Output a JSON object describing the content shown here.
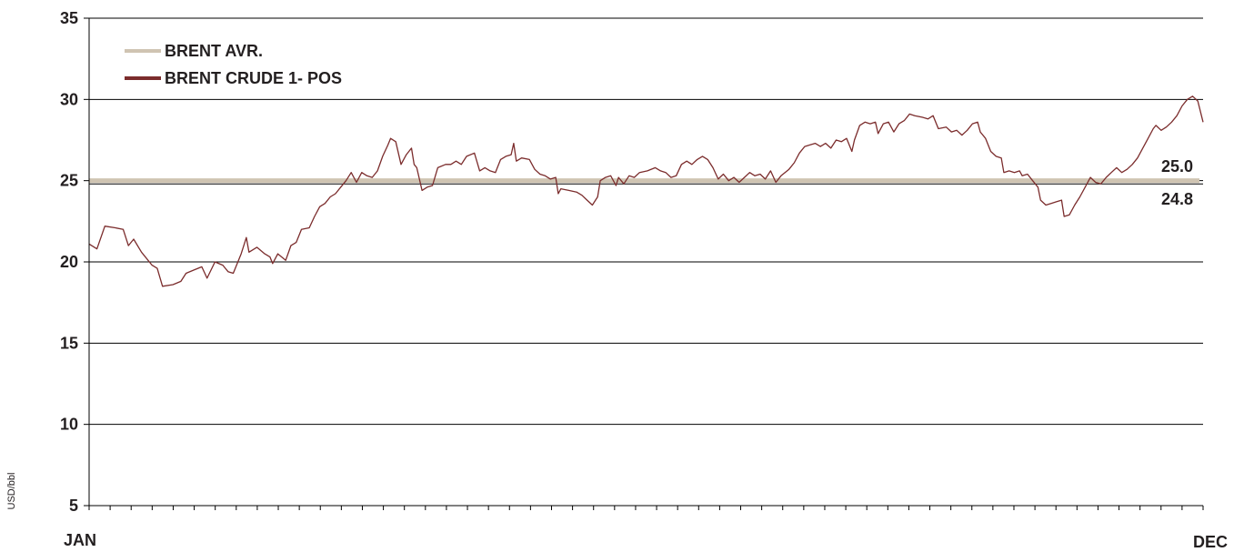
{
  "chart_data": {
    "type": "line",
    "ylabel": "USD/bbl",
    "ylim": [
      5,
      35
    ],
    "yticks": [
      "5",
      "10",
      "15",
      "20",
      "25",
      "30",
      "35"
    ],
    "xlabels": {
      "start": "JAN",
      "end": "DEC"
    },
    "grid": true,
    "legend_position": "top-left",
    "colors": {
      "avg_line": "#cfc4b2",
      "price_line": "#7b2c2c",
      "grid": "#000000",
      "text": "#231f20"
    },
    "legend": [
      {
        "label": "BRENT AVR.",
        "series": "average"
      },
      {
        "label": "BRENT CRUDE 1- POS",
        "series": "price"
      }
    ],
    "reference_lines": [
      {
        "value": 25.0,
        "label": "25.0",
        "color": "#cfc4b2"
      },
      {
        "value": 24.8,
        "label": "24.8",
        "color": "#000000"
      }
    ],
    "series": [
      {
        "name": "BRENT CRUDE 1- POS",
        "color": "#7b2c2c",
        "points": [
          [
            0.0,
            21.1
          ],
          [
            0.3,
            20.8
          ],
          [
            0.6,
            22.2
          ],
          [
            1.0,
            22.1
          ],
          [
            1.3,
            22.0
          ],
          [
            1.5,
            21.0
          ],
          [
            1.7,
            21.4
          ],
          [
            2.0,
            20.6
          ],
          [
            2.4,
            19.8
          ],
          [
            2.6,
            19.6
          ],
          [
            2.8,
            18.5
          ],
          [
            3.2,
            18.6
          ],
          [
            3.5,
            18.8
          ],
          [
            3.7,
            19.3
          ],
          [
            4.0,
            19.5
          ],
          [
            4.3,
            19.7
          ],
          [
            4.5,
            19.0
          ],
          [
            4.8,
            20.0
          ],
          [
            5.1,
            19.8
          ],
          [
            5.3,
            19.4
          ],
          [
            5.5,
            19.3
          ],
          [
            5.8,
            20.5
          ],
          [
            6.0,
            21.5
          ],
          [
            6.1,
            20.6
          ],
          [
            6.4,
            20.9
          ],
          [
            6.7,
            20.5
          ],
          [
            6.9,
            20.3
          ],
          [
            7.0,
            19.9
          ],
          [
            7.2,
            20.5
          ],
          [
            7.5,
            20.1
          ],
          [
            7.7,
            21.0
          ],
          [
            7.9,
            21.2
          ],
          [
            8.1,
            22.0
          ],
          [
            8.4,
            22.1
          ],
          [
            8.6,
            22.8
          ],
          [
            8.8,
            23.4
          ],
          [
            9.0,
            23.6
          ],
          [
            9.2,
            24.0
          ],
          [
            9.4,
            24.2
          ],
          [
            9.6,
            24.6
          ],
          [
            9.8,
            25.0
          ],
          [
            10.0,
            25.5
          ],
          [
            10.2,
            24.9
          ],
          [
            10.4,
            25.5
          ],
          [
            10.6,
            25.3
          ],
          [
            10.8,
            25.2
          ],
          [
            11.0,
            25.6
          ],
          [
            11.2,
            26.5
          ],
          [
            11.4,
            27.2
          ],
          [
            11.5,
            27.6
          ],
          [
            11.7,
            27.4
          ],
          [
            11.9,
            26.0
          ],
          [
            12.1,
            26.6
          ],
          [
            12.3,
            27.0
          ],
          [
            12.4,
            26.0
          ],
          [
            12.5,
            25.8
          ],
          [
            12.7,
            24.4
          ],
          [
            12.9,
            24.6
          ],
          [
            13.1,
            24.7
          ],
          [
            13.3,
            25.8
          ],
          [
            13.6,
            26.0
          ],
          [
            13.8,
            26.0
          ],
          [
            14.0,
            26.2
          ],
          [
            14.2,
            26.0
          ],
          [
            14.4,
            26.5
          ],
          [
            14.7,
            26.7
          ],
          [
            14.9,
            25.6
          ],
          [
            15.1,
            25.8
          ],
          [
            15.3,
            25.6
          ],
          [
            15.5,
            25.5
          ],
          [
            15.7,
            26.3
          ],
          [
            15.9,
            26.5
          ],
          [
            16.1,
            26.6
          ],
          [
            16.2,
            27.3
          ],
          [
            16.3,
            26.2
          ],
          [
            16.5,
            26.4
          ],
          [
            16.8,
            26.3
          ],
          [
            17.0,
            25.7
          ],
          [
            17.2,
            25.4
          ],
          [
            17.4,
            25.3
          ],
          [
            17.6,
            25.1
          ],
          [
            17.8,
            25.2
          ],
          [
            17.9,
            24.2
          ],
          [
            18.0,
            24.5
          ],
          [
            18.3,
            24.4
          ],
          [
            18.6,
            24.3
          ],
          [
            18.8,
            24.1
          ],
          [
            19.0,
            23.8
          ],
          [
            19.2,
            23.5
          ],
          [
            19.4,
            24.0
          ],
          [
            19.5,
            25.0
          ],
          [
            19.7,
            25.2
          ],
          [
            19.9,
            25.3
          ],
          [
            20.1,
            24.7
          ],
          [
            20.2,
            25.2
          ],
          [
            20.4,
            24.8
          ],
          [
            20.6,
            25.3
          ],
          [
            20.8,
            25.2
          ],
          [
            21.0,
            25.5
          ],
          [
            21.3,
            25.6
          ],
          [
            21.6,
            25.8
          ],
          [
            21.8,
            25.6
          ],
          [
            22.0,
            25.5
          ],
          [
            22.2,
            25.2
          ],
          [
            22.4,
            25.3
          ],
          [
            22.6,
            26.0
          ],
          [
            22.8,
            26.2
          ],
          [
            23.0,
            26.0
          ],
          [
            23.2,
            26.3
          ],
          [
            23.4,
            26.5
          ],
          [
            23.6,
            26.3
          ],
          [
            23.8,
            25.8
          ],
          [
            24.0,
            25.1
          ],
          [
            24.2,
            25.4
          ],
          [
            24.4,
            25.0
          ],
          [
            24.6,
            25.2
          ],
          [
            24.8,
            24.9
          ],
          [
            25.0,
            25.2
          ],
          [
            25.2,
            25.5
          ],
          [
            25.4,
            25.3
          ],
          [
            25.6,
            25.4
          ],
          [
            25.8,
            25.1
          ],
          [
            26.0,
            25.6
          ],
          [
            26.2,
            24.9
          ],
          [
            26.4,
            25.3
          ],
          [
            26.7,
            25.7
          ],
          [
            26.9,
            26.1
          ],
          [
            27.1,
            26.7
          ],
          [
            27.3,
            27.1
          ],
          [
            27.5,
            27.2
          ],
          [
            27.7,
            27.3
          ],
          [
            27.9,
            27.1
          ],
          [
            28.1,
            27.3
          ],
          [
            28.3,
            27.0
          ],
          [
            28.5,
            27.5
          ],
          [
            28.7,
            27.4
          ],
          [
            28.9,
            27.6
          ],
          [
            29.1,
            26.8
          ],
          [
            29.2,
            27.5
          ],
          [
            29.4,
            28.4
          ],
          [
            29.6,
            28.6
          ],
          [
            29.8,
            28.5
          ],
          [
            30.0,
            28.6
          ],
          [
            30.1,
            27.9
          ],
          [
            30.3,
            28.5
          ],
          [
            30.5,
            28.6
          ],
          [
            30.7,
            28.0
          ],
          [
            30.9,
            28.5
          ],
          [
            31.1,
            28.7
          ],
          [
            31.3,
            29.1
          ],
          [
            31.5,
            29.0
          ],
          [
            31.8,
            28.9
          ],
          [
            32.0,
            28.8
          ],
          [
            32.2,
            29.0
          ],
          [
            32.4,
            28.2
          ],
          [
            32.7,
            28.3
          ],
          [
            32.9,
            28.0
          ],
          [
            33.1,
            28.1
          ],
          [
            33.3,
            27.8
          ],
          [
            33.5,
            28.1
          ],
          [
            33.7,
            28.5
          ],
          [
            33.9,
            28.6
          ],
          [
            34.0,
            28.0
          ],
          [
            34.2,
            27.6
          ],
          [
            34.4,
            26.8
          ],
          [
            34.6,
            26.5
          ],
          [
            34.8,
            26.4
          ],
          [
            34.9,
            25.5
          ],
          [
            35.1,
            25.6
          ],
          [
            35.3,
            25.5
          ],
          [
            35.5,
            25.6
          ],
          [
            35.6,
            25.3
          ],
          [
            35.8,
            25.4
          ],
          [
            36.0,
            25.0
          ],
          [
            36.2,
            24.6
          ],
          [
            36.3,
            23.8
          ],
          [
            36.5,
            23.5
          ],
          [
            36.7,
            23.6
          ],
          [
            36.9,
            23.7
          ],
          [
            37.1,
            23.8
          ],
          [
            37.2,
            22.8
          ],
          [
            37.4,
            22.9
          ],
          [
            37.6,
            23.5
          ],
          [
            37.8,
            24.0
          ],
          [
            38.0,
            24.6
          ],
          [
            38.2,
            25.2
          ],
          [
            38.4,
            24.9
          ],
          [
            38.6,
            24.8
          ],
          [
            38.8,
            25.2
          ],
          [
            39.0,
            25.5
          ],
          [
            39.2,
            25.8
          ],
          [
            39.4,
            25.5
          ],
          [
            39.6,
            25.7
          ],
          [
            39.8,
            26.0
          ],
          [
            40.0,
            26.4
          ],
          [
            40.2,
            27.0
          ],
          [
            40.4,
            27.6
          ],
          [
            40.6,
            28.2
          ],
          [
            40.7,
            28.4
          ],
          [
            40.9,
            28.1
          ],
          [
            41.1,
            28.3
          ],
          [
            41.3,
            28.6
          ],
          [
            41.5,
            29.0
          ],
          [
            41.7,
            29.6
          ],
          [
            41.9,
            30.0
          ],
          [
            42.1,
            30.2
          ],
          [
            42.3,
            29.9
          ],
          [
            42.5,
            28.6
          ]
        ]
      }
    ],
    "x_range": [
      0,
      42.5
    ],
    "x_minor_ticks": 53
  }
}
